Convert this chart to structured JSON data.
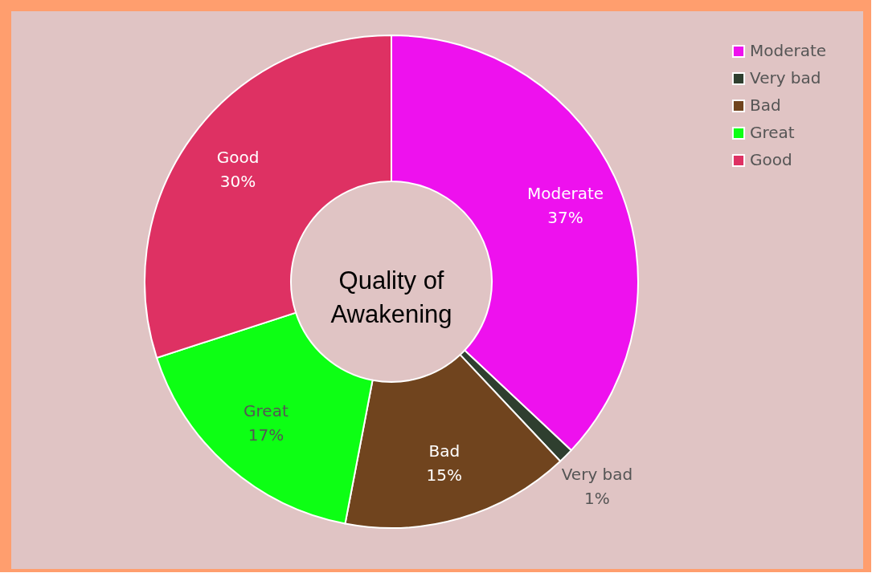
{
  "chart_data": {
    "type": "donut",
    "title": "Quality of Awakening",
    "categories": [
      "Moderate",
      "Very bad",
      "Bad",
      "Great",
      "Good"
    ],
    "values": [
      37,
      1,
      15,
      17,
      30
    ],
    "colors": [
      "#ee11ee",
      "#2f3f2f",
      "#70441e",
      "#0dff14",
      "#de3163"
    ],
    "value_labels": [
      "37%",
      "1%",
      "15%",
      "17%",
      "30%"
    ],
    "legend": "top right"
  }
}
